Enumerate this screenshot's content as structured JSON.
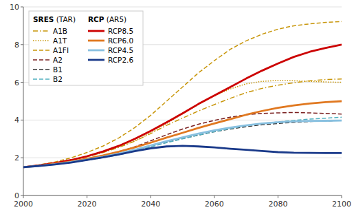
{
  "chart_data": {
    "type": "line",
    "x": [
      2000,
      2005,
      2010,
      2015,
      2020,
      2025,
      2030,
      2035,
      2040,
      2045,
      2050,
      2055,
      2060,
      2065,
      2070,
      2075,
      2080,
      2085,
      2090,
      2095,
      2100
    ],
    "xlim": [
      2000,
      2100
    ],
    "xticks": [
      2000,
      2020,
      2040,
      2060,
      2080,
      2100
    ],
    "ylim": [
      0,
      10
    ],
    "yticks": [
      0,
      2,
      4,
      6,
      8,
      10
    ],
    "grid": true,
    "legend": "upper left",
    "annotations": [
      "SRES (TAR)",
      "RCP (AR5)"
    ],
    "series": [
      {
        "name": "A1B",
        "color": "#c8960a",
        "line_style": "dashdot",
        "values": [
          1.5,
          1.6,
          1.72,
          1.87,
          2.05,
          2.28,
          2.55,
          2.88,
          3.28,
          3.72,
          4.1,
          4.48,
          4.82,
          5.15,
          5.45,
          5.68,
          5.85,
          5.98,
          6.08,
          6.15,
          6.18
        ]
      },
      {
        "name": "A1T",
        "color": "#c8960a",
        "line_style": "dotted",
        "values": [
          1.5,
          1.6,
          1.72,
          1.87,
          2.05,
          2.28,
          2.56,
          2.9,
          3.32,
          3.82,
          4.32,
          4.82,
          5.28,
          5.65,
          5.92,
          6.05,
          6.1,
          6.08,
          6.05,
          6.02,
          6.0
        ]
      },
      {
        "name": "A1FI",
        "color": "#c8960a",
        "line_style": "dashed",
        "values": [
          1.5,
          1.63,
          1.78,
          2.0,
          2.28,
          2.62,
          3.05,
          3.6,
          4.25,
          5.0,
          5.75,
          6.5,
          7.15,
          7.75,
          8.2,
          8.55,
          8.82,
          9.0,
          9.1,
          9.18,
          9.22
        ]
      },
      {
        "name": "A2",
        "color": "#7a2020",
        "line_style": "dashed",
        "values": [
          1.5,
          1.58,
          1.68,
          1.8,
          1.96,
          2.12,
          2.32,
          2.58,
          2.9,
          3.22,
          3.52,
          3.78,
          3.98,
          4.15,
          4.28,
          4.35,
          4.38,
          4.4,
          4.38,
          4.35,
          4.32
        ]
      },
      {
        "name": "B1",
        "color": "#333333",
        "line_style": "dashed",
        "values": [
          1.5,
          1.57,
          1.65,
          1.75,
          1.88,
          2.02,
          2.18,
          2.38,
          2.6,
          2.82,
          3.02,
          3.2,
          3.38,
          3.52,
          3.65,
          3.75,
          3.82,
          3.88,
          3.92,
          3.95,
          3.98
        ]
      },
      {
        "name": "B2",
        "color": "#50b0c0",
        "line_style": "dashed",
        "values": [
          1.5,
          1.57,
          1.65,
          1.75,
          1.88,
          2.0,
          2.15,
          2.35,
          2.58,
          2.8,
          3.0,
          3.2,
          3.38,
          3.55,
          3.7,
          3.82,
          3.9,
          3.98,
          4.05,
          4.1,
          4.15
        ]
      },
      {
        "name": "RCP8.5",
        "color": "#cc0000",
        "line_style": "solid",
        "values": [
          1.5,
          1.6,
          1.72,
          1.88,
          2.08,
          2.33,
          2.63,
          3.0,
          3.42,
          3.88,
          4.35,
          4.85,
          5.3,
          5.75,
          6.2,
          6.62,
          7.0,
          7.35,
          7.62,
          7.82,
          8.0
        ]
      },
      {
        "name": "RCP6.0",
        "color": "#e07820",
        "line_style": "solid",
        "values": [
          1.5,
          1.58,
          1.68,
          1.8,
          1.95,
          2.12,
          2.32,
          2.55,
          2.8,
          3.07,
          3.32,
          3.58,
          3.82,
          4.05,
          4.28,
          4.48,
          4.65,
          4.78,
          4.88,
          4.95,
          5.0
        ]
      },
      {
        "name": "RCP4.5",
        "color": "#88c0e0",
        "line_style": "solid",
        "values": [
          1.5,
          1.57,
          1.66,
          1.77,
          1.9,
          2.05,
          2.22,
          2.42,
          2.65,
          2.88,
          3.08,
          3.28,
          3.45,
          3.6,
          3.72,
          3.82,
          3.88,
          3.93,
          3.95,
          3.96,
          3.97
        ]
      },
      {
        "name": "RCP2.6",
        "color": "#1a3a8a",
        "line_style": "solid",
        "values": [
          1.5,
          1.57,
          1.65,
          1.75,
          1.88,
          2.02,
          2.18,
          2.35,
          2.5,
          2.6,
          2.63,
          2.6,
          2.55,
          2.48,
          2.42,
          2.36,
          2.3,
          2.27,
          2.26,
          2.25,
          2.25
        ]
      }
    ]
  }
}
